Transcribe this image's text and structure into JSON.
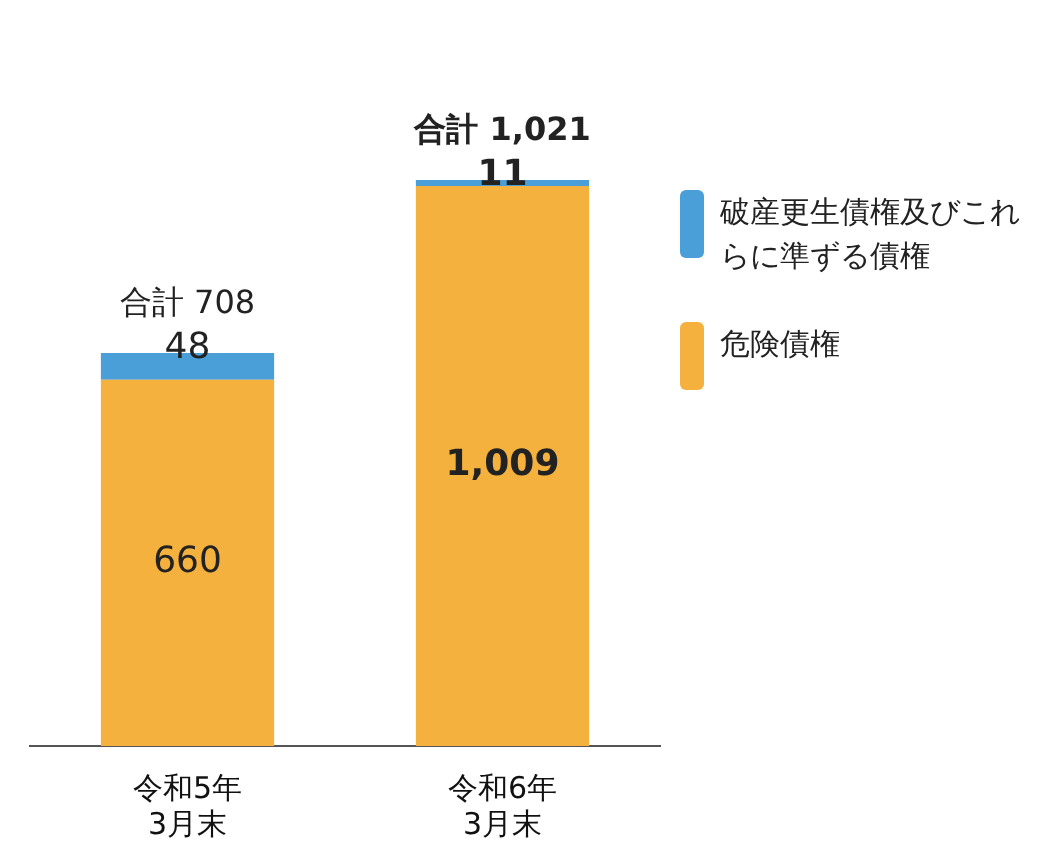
{
  "chart_data": {
    "type": "bar",
    "stacked": true,
    "categories": [
      "令和5年\n3月末",
      "令和6年\n3月末"
    ],
    "series": [
      {
        "name": "危険債権",
        "color": "#f5b13d",
        "values": [
          660,
          1009
        ],
        "value_labels": [
          "660",
          "1,009"
        ]
      },
      {
        "name": "破産更生債権及びこれらに準ずる債権",
        "color": "#4a9fd8",
        "values": [
          48,
          11
        ],
        "value_labels": [
          "48",
          "11"
        ]
      }
    ],
    "totals": [
      "合計 708",
      "合計 1,021"
    ],
    "legend": "right",
    "tick_labels": "x",
    "grid": false
  }
}
